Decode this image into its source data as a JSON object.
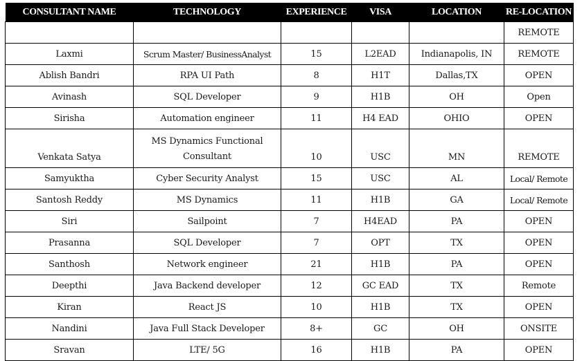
{
  "table": {
    "headers": [
      "CONSULTANT NAME",
      "TECHNOLOGY",
      "EXPERIENCE",
      "VISA",
      "LOCATION",
      "RE-LOCATION"
    ],
    "rows": [
      {
        "name": "",
        "technology": "",
        "experience": "",
        "visa": "",
        "location": "",
        "relocation": "REMOTE"
      },
      {
        "name": "Laxmi",
        "technology": "Scrum Master/ BusinessAnalyst",
        "experience": "15",
        "visa": "L2EAD",
        "location": "Indianapolis, IN",
        "relocation": "REMOTE"
      },
      {
        "name": "Ablish Bandri",
        "technology": "RPA UI Path",
        "experience": "8",
        "visa": "H1T",
        "location": "Dallas,TX",
        "relocation": "OPEN"
      },
      {
        "name": "Avinash",
        "technology": "SQL Developer",
        "experience": "9",
        "visa": "H1B",
        "location": "OH",
        "relocation": "Open"
      },
      {
        "name": "Sirisha",
        "technology": "Automation engineer",
        "experience": "11",
        "visa": "H4 EAD",
        "location": "OHIO",
        "relocation": "OPEN"
      },
      {
        "name": "Venkata Satya",
        "technology": "MS Dynamics Functional Consultant",
        "experience": "10",
        "visa": "USC",
        "location": "MN",
        "relocation": "REMOTE"
      },
      {
        "name": "Samyuktha",
        "technology": "Cyber Security Analyst",
        "experience": "15",
        "visa": "USC",
        "location": "AL",
        "relocation": "Local/ Remote"
      },
      {
        "name": "Santosh Reddy",
        "technology": "MS Dynamics",
        "experience": "11",
        "visa": "H1B",
        "location": "GA",
        "relocation": "Local/ Remote"
      },
      {
        "name": "Siri",
        "technology": "Sailpoint",
        "experience": "7",
        "visa": "H4EAD",
        "location": "PA",
        "relocation": "OPEN"
      },
      {
        "name": "Prasanna",
        "technology": "SQL Developer",
        "experience": "7",
        "visa": "OPT",
        "location": "TX",
        "relocation": "OPEN"
      },
      {
        "name": "Santhosh",
        "technology": "Network engineer",
        "experience": "21",
        "visa": "H1B",
        "location": "PA",
        "relocation": "OPEN"
      },
      {
        "name": "Deepthi",
        "technology": "Java Backend developer",
        "experience": "12",
        "visa": "GC EAD",
        "location": "TX",
        "relocation": "Remote"
      },
      {
        "name": "Kiran",
        "technology": "React JS",
        "experience": "10",
        "visa": "H1B",
        "location": "TX",
        "relocation": "OPEN"
      },
      {
        "name": "Nandini",
        "technology": "Java Full Stack Developer",
        "experience": "8+",
        "visa": "GC",
        "location": "OH",
        "relocation": "ONSITE"
      },
      {
        "name": "Sravan",
        "technology": "LTE/ 5G",
        "experience": "16",
        "visa": "H1B",
        "location": "PA",
        "relocation": "OPEN"
      }
    ]
  }
}
